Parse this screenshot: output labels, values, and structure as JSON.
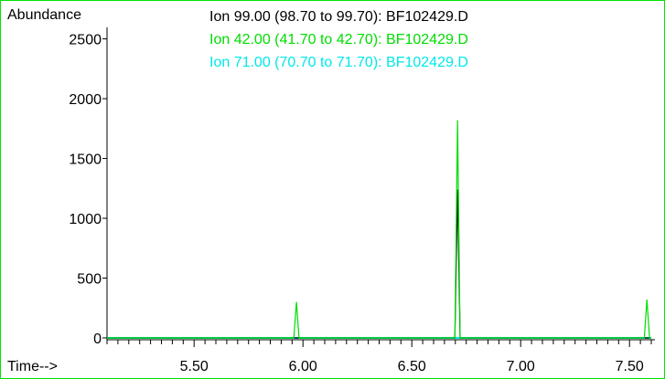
{
  "chart_data": {
    "type": "line",
    "ylabel": "Abundance",
    "xlabel": "Time-->",
    "xlim": [
      5.1,
      7.6
    ],
    "ylim": [
      0,
      2550
    ],
    "x_ticks": [
      5.5,
      6.0,
      6.5,
      7.0,
      7.5
    ],
    "x_tick_labels": [
      "5.50",
      "6.00",
      "6.50",
      "7.00",
      "7.50"
    ],
    "y_ticks": [
      0,
      500,
      1000,
      1500,
      2000,
      2500
    ],
    "y_tick_labels": [
      "0",
      "500",
      "1000",
      "1500",
      "2000",
      "2500"
    ],
    "series": [
      {
        "name": "Ion  99.00 (98.70 to 99.70): BF102429.D",
        "color": "#000000",
        "peaks": [
          [
            6.71,
            1240
          ]
        ]
      },
      {
        "name": "Ion  42.00 (41.70 to 42.70): BF102429.D",
        "color": "#00dd00",
        "peaks": [
          [
            5.97,
            300
          ],
          [
            6.71,
            1820
          ],
          [
            7.58,
            320
          ]
        ]
      },
      {
        "name": "Ion  71.00 (70.70 to 71.70): BF102429.D",
        "color": "#00e8e8",
        "peaks": []
      }
    ]
  }
}
